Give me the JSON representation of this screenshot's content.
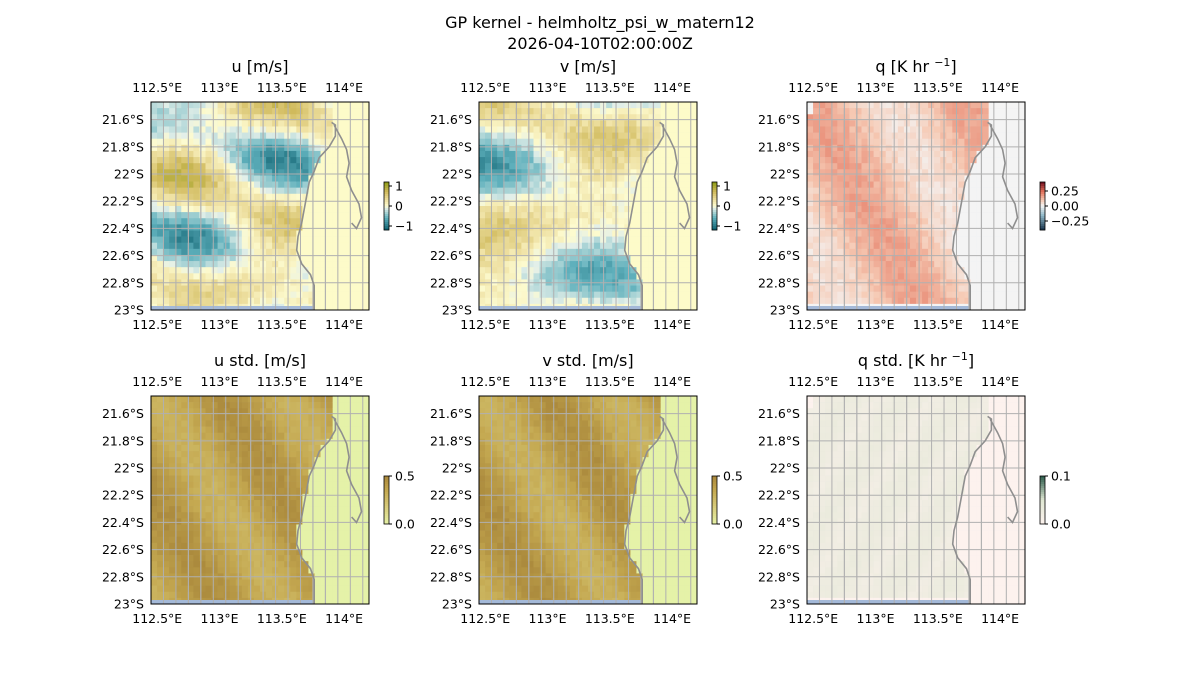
{
  "figure": {
    "title_line1": "GP kernel - helmholtz_psi_w_matern12",
    "title_line2": "2026-04-10T02:00:00Z"
  },
  "axes": {
    "lon_ticks": [
      "112.5°E",
      "113°E",
      "113.5°E",
      "114°E"
    ],
    "lon_values": [
      112.5,
      113.0,
      113.5,
      114.0
    ],
    "lat_ticks": [
      "21.6°S",
      "21.8°S",
      "22°S",
      "22.2°S",
      "22.4°S",
      "22.6°S",
      "22.8°S",
      "23°S"
    ],
    "lat_values": [
      -21.6,
      -21.8,
      -22.0,
      -22.2,
      -22.4,
      -22.6,
      -22.8,
      -23.0
    ],
    "lon_range": [
      112.45,
      114.2
    ],
    "lat_range": [
      -23.0,
      -21.47
    ]
  },
  "panels": [
    {
      "id": "u",
      "title_main": "u [m/s]",
      "title_sup": "",
      "title_rest": "",
      "cmap": "div_brbg",
      "colorbar": {
        "ticks": [
          "1",
          "0",
          "−1"
        ],
        "tick_values": [
          1,
          0,
          -1
        ],
        "range": [
          -1.2,
          1.2
        ]
      }
    },
    {
      "id": "v",
      "title_main": "v [m/s]",
      "title_sup": "",
      "title_rest": "",
      "cmap": "div_brbg",
      "colorbar": {
        "ticks": [
          "1",
          "0",
          "−1"
        ],
        "tick_values": [
          1,
          0,
          -1
        ],
        "range": [
          -1.2,
          1.2
        ]
      }
    },
    {
      "id": "q",
      "title_main": "q [K hr ",
      "title_sup": "−1",
      "title_rest": "]",
      "cmap": "div_rdbu",
      "colorbar": {
        "ticks": [
          "0.25",
          "0.00",
          "−0.25"
        ],
        "tick_values": [
          0.25,
          0.0,
          -0.25
        ],
        "range": [
          -0.4,
          0.4
        ]
      }
    },
    {
      "id": "u_std",
      "title_main": "u std. [m/s]",
      "title_sup": "",
      "title_rest": "",
      "cmap": "seq_brown",
      "colorbar": {
        "ticks": [
          "0.5",
          "0.0"
        ],
        "tick_values": [
          0.5,
          0.0
        ],
        "range": [
          0.0,
          0.5
        ]
      }
    },
    {
      "id": "v_std",
      "title_main": "v std. [m/s]",
      "title_sup": "",
      "title_rest": "",
      "cmap": "seq_brown",
      "colorbar": {
        "ticks": [
          "0.5",
          "0.0"
        ],
        "tick_values": [
          0.5,
          0.0
        ],
        "range": [
          0.0,
          0.5
        ]
      }
    },
    {
      "id": "q_std",
      "title_main": "q std. [K hr ",
      "title_sup": "−1",
      "title_rest": "]",
      "cmap": "seq_green",
      "colorbar": {
        "ticks": [
          "0.1",
          "0.0"
        ],
        "tick_values": [
          0.1,
          0.0
        ],
        "range": [
          0.0,
          0.1
        ]
      }
    }
  ],
  "colors": {
    "ocean_edge": "#a4b9d8",
    "coastline": "#8f8f8f",
    "gridline": "#b0b0b0",
    "land_no_data_div": "#fdfbc9",
    "land_no_data_q": "#f4f4f4",
    "land_no_data_std": "#e5f2a8",
    "land_no_data_qstd": "#fdf2ee"
  }
}
